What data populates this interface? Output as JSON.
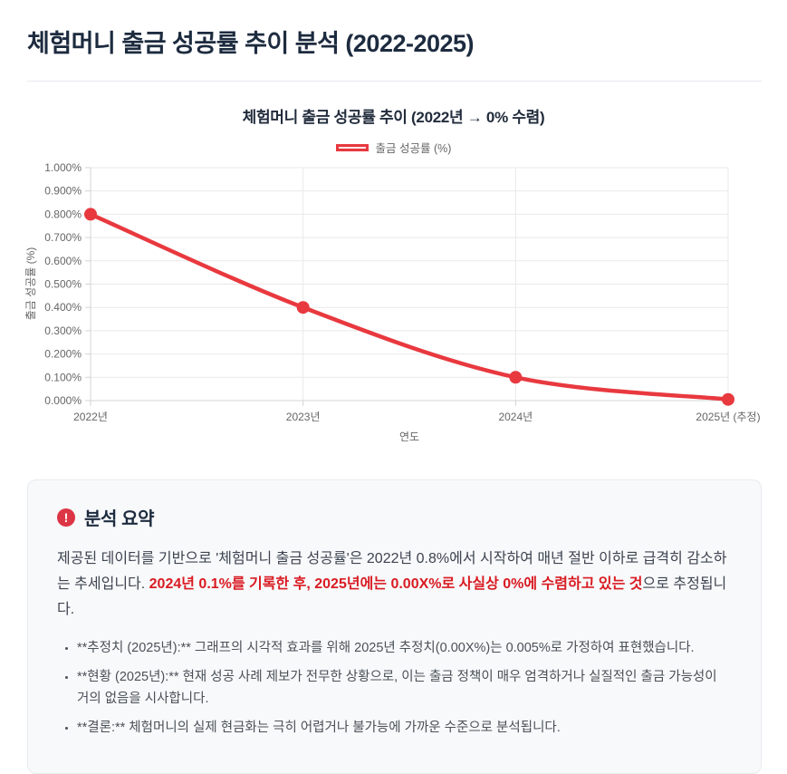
{
  "page": {
    "title": "체험머니 출금 성공률 추이 분석 (2022-2025)"
  },
  "chart": {
    "title": "체험머니 출금 성공률 추이 (2022년 → 0% 수렴)",
    "legend_label": "출금 성공률 (%)"
  },
  "chart_data": {
    "type": "line",
    "title": "체험머니 출금 성공률 추이 (2022년 → 0% 수렴)",
    "categories": [
      "2022년",
      "2023년",
      "2024년",
      "2025년 (추정)"
    ],
    "series": [
      {
        "name": "출금 성공률 (%)",
        "values": [
          0.8,
          0.4,
          0.1,
          0.005
        ]
      }
    ],
    "xlabel": "연도",
    "ylabel": "출금 성공률 (%)",
    "ylim": [
      0,
      1.0
    ],
    "y_tick_step": 0.1,
    "y_tick_decimals": 3,
    "y_tick_suffix": "%",
    "grid": true,
    "legend_position": "top",
    "line_color": "#e8393f",
    "point_color": "#e8393f",
    "legend_fill": "#fbe9e9",
    "smooth": true
  },
  "summary": {
    "icon": "exclamation-circle",
    "title": "분석 요약",
    "paragraph": {
      "normal_1": "제공된 데이터를 기반으로 '체험머니 출금 성공률'은 2022년 0.8%에서 시작하여 매년 절반 이하로 급격히 감소하는 추세입니다. ",
      "highlight": "2024년 0.1%를 기록한 후, 2025년에는 0.00X%로 사실상 0%에 수렴하고 있는 것",
      "normal_2": "으로 추정됩니다."
    },
    "bullets": [
      "**추정치 (2025년):** 그래프의 시각적 효과를 위해 2025년 추정치(0.00X%)는 0.005%로 가정하여 표현했습니다.",
      "**현황 (2025년):** 현재 성공 사례 제보가 전무한 상황으로, 이는 출금 정책이 매우 엄격하거나 실질적인 출금 가능성이 거의 없음을 시사합니다.",
      "**결론:** 체험머니의 실제 현금화는 극히 어렵거나 불가능에 가까운 수준으로 분석됩니다."
    ]
  },
  "colors": {
    "title_navy": "#1d2b3f",
    "accent_red": "#d91b22",
    "line_red": "#e8393f",
    "card_bg": "#f8f9fa",
    "card_border": "#e8eaee",
    "grid": "#e9e9e9"
  }
}
